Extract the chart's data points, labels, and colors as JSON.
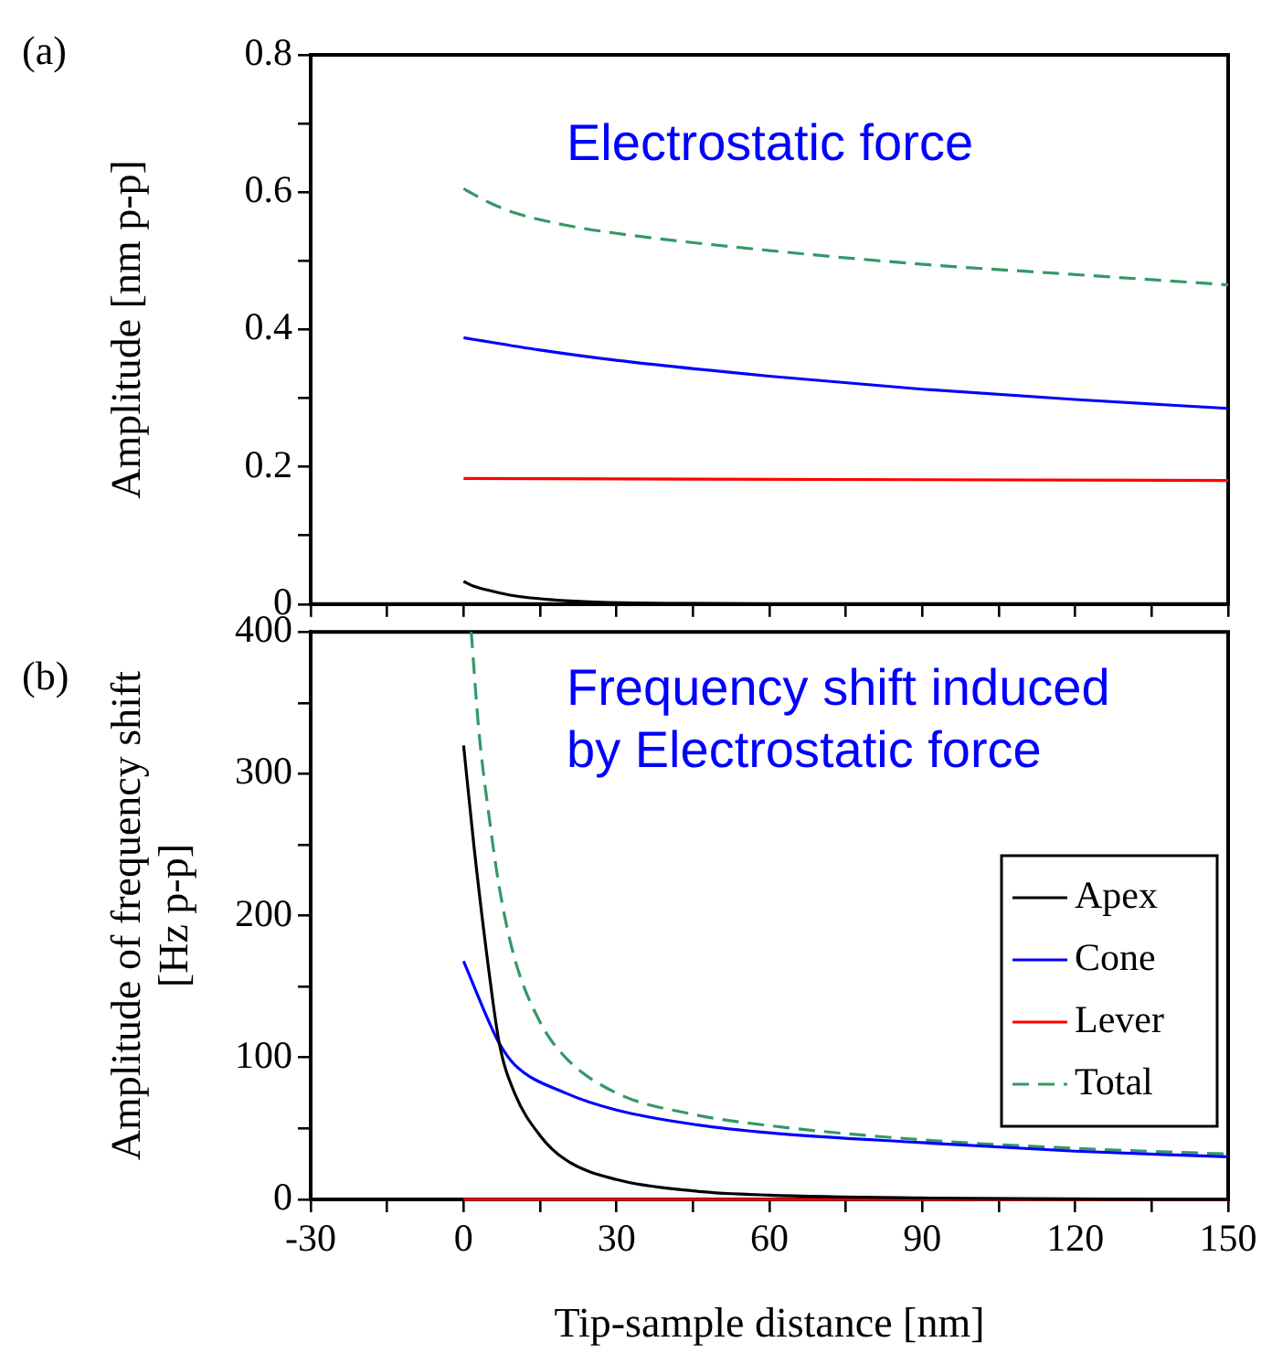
{
  "chart_data": [
    {
      "type": "line",
      "ylabel": "Amplitude [nm p-p]",
      "annotations": [
        "(a)",
        "Electrostatic force"
      ],
      "xlim": [
        -30,
        150
      ],
      "xticks": [
        -30,
        {
          "value": -15,
          "label": null
        },
        0,
        {
          "value": 15,
          "label": null
        },
        30,
        {
          "value": 45,
          "label": null
        },
        60,
        {
          "value": 75,
          "label": null
        },
        90,
        {
          "value": 105,
          "label": null
        },
        120,
        {
          "value": 135,
          "label": null
        },
        150
      ],
      "ylim": [
        0,
        0.8
      ],
      "yticks": [
        0,
        {
          "value": 0.1,
          "label": null
        },
        0.2,
        {
          "value": 0.3,
          "label": null
        },
        0.4,
        {
          "value": 0.5,
          "label": null
        },
        0.6,
        {
          "value": 0.7,
          "label": null
        },
        0.8
      ],
      "tick_labels": "y",
      "grid": false,
      "legend": false,
      "series": [
        {
          "color": "#000000",
          "x": [
            0,
            2,
            5,
            10,
            20,
            40,
            80,
            150
          ],
          "values": [
            0.033,
            0.026,
            0.02,
            0.012,
            0.005,
            0.001,
            0,
            0
          ]
        },
        {
          "color": "#0000ff",
          "x": [
            0,
            15,
            30,
            60,
            90,
            120,
            150
          ],
          "values": [
            0.388,
            0.37,
            0.355,
            0.332,
            0.313,
            0.298,
            0.285
          ]
        },
        {
          "color": "#ff0000",
          "x": [
            0,
            150
          ],
          "values": [
            0.183,
            0.18
          ]
        },
        {
          "color": "#339966",
          "line_style": "dashed",
          "x": [
            0,
            5,
            10,
            20,
            30,
            60,
            90,
            120,
            150
          ],
          "values": [
            0.605,
            0.585,
            0.57,
            0.552,
            0.54,
            0.515,
            0.495,
            0.48,
            0.465
          ]
        }
      ]
    },
    {
      "type": "line",
      "xlabel": "Tip-sample distance [nm]",
      "ylabel": "Amplitude of frequency shift\n[Hz p-p]",
      "annotations": [
        "(b)",
        "Frequency shift induced\nby Electrostatic force"
      ],
      "xlim": [
        -30,
        150
      ],
      "xticks": [
        -30,
        {
          "value": -15,
          "label": null
        },
        0,
        {
          "value": 15,
          "label": null
        },
        30,
        {
          "value": 45,
          "label": null
        },
        60,
        {
          "value": 75,
          "label": null
        },
        90,
        {
          "value": 105,
          "label": null
        },
        120,
        {
          "value": 135,
          "label": null
        },
        150
      ],
      "ylim": [
        0,
        400
      ],
      "yticks": [
        0,
        {
          "value": 50,
          "label": null
        },
        100,
        {
          "value": 150,
          "label": null
        },
        200,
        {
          "value": 250,
          "label": null
        },
        300,
        {
          "value": 350,
          "label": null
        },
        400
      ],
      "grid": false,
      "legend": "right",
      "series": [
        {
          "name": "Apex",
          "color": "#000000",
          "x": [
            0,
            2,
            5,
            7,
            10,
            15,
            20,
            30,
            45,
            60,
            90,
            150
          ],
          "values": [
            320,
            250,
            160,
            110,
            75,
            45,
            28,
            14,
            6,
            3,
            1,
            0
          ]
        },
        {
          "name": "Cone",
          "color": "#0000ff",
          "x": [
            0,
            5,
            7,
            10,
            20,
            30,
            45,
            60,
            90,
            120,
            150
          ],
          "values": [
            168,
            125,
            110,
            95,
            75,
            63,
            53,
            47,
            40,
            34,
            30
          ]
        },
        {
          "name": "Lever",
          "color": "#ff0000",
          "x": [
            0,
            150
          ],
          "values": [
            0,
            0
          ]
        },
        {
          "name": "Total",
          "color": "#339966",
          "line_style": "dashed",
          "x": [
            1.5,
            3,
            5,
            7,
            10,
            15,
            20,
            30,
            45,
            60,
            90,
            120,
            150
          ],
          "values": [
            400,
            330,
            270,
            220,
            170,
            125,
            100,
            75,
            60,
            52,
            42,
            36,
            32
          ]
        }
      ]
    }
  ]
}
